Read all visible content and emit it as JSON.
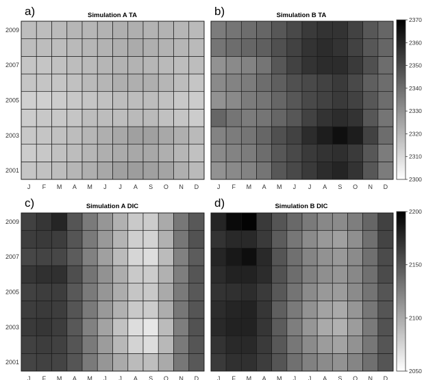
{
  "chart_data": [
    {
      "type": "heatmap",
      "panel_label": "a)",
      "title": "Simulation A TA",
      "x_categories": [
        "J",
        "F",
        "M",
        "A",
        "M",
        "J",
        "J",
        "A",
        "S",
        "O",
        "N",
        "D"
      ],
      "y_categories": [
        2001,
        2002,
        2003,
        2004,
        2005,
        2006,
        2007,
        2008,
        2009
      ],
      "y_tick_labels": [
        "2001",
        "2003",
        "2005",
        "2007",
        "2009"
      ],
      "colorbar": {
        "min": 2300,
        "max": 2370,
        "ticks": [
          "2300",
          "2310",
          "2320",
          "2330",
          "2340",
          "2350",
          "2360",
          "2370"
        ]
      },
      "values": [
        [
          2316,
          2317,
          2318,
          2320,
          2322,
          2324,
          2326,
          2327,
          2326,
          2325,
          2322,
          2319
        ],
        [
          2314,
          2315,
          2317,
          2318,
          2320,
          2322,
          2323,
          2324,
          2324,
          2322,
          2320,
          2317
        ],
        [
          2315,
          2316,
          2317,
          2318,
          2320,
          2322,
          2324,
          2326,
          2326,
          2324,
          2322,
          2319
        ],
        [
          2314,
          2315,
          2315,
          2316,
          2318,
          2318,
          2318,
          2319,
          2319,
          2317,
          2316,
          2314
        ],
        [
          2313,
          2313,
          2314,
          2315,
          2316,
          2317,
          2318,
          2318,
          2318,
          2317,
          2315,
          2314
        ],
        [
          2316,
          2316,
          2316,
          2317,
          2319,
          2320,
          2322,
          2322,
          2322,
          2320,
          2318,
          2316
        ],
        [
          2316,
          2316,
          2317,
          2318,
          2319,
          2320,
          2321,
          2321,
          2320,
          2319,
          2318,
          2318
        ],
        [
          2318,
          2318,
          2318,
          2319,
          2320,
          2321,
          2322,
          2323,
          2322,
          2321,
          2320,
          2319
        ],
        [
          2318,
          2318,
          2319,
          2320,
          2320,
          2321,
          2322,
          2322,
          2321,
          2321,
          2320,
          2319
        ]
      ]
    },
    {
      "type": "heatmap",
      "panel_label": "b)",
      "title": "Simulation B TA",
      "x_categories": [
        "J",
        "F",
        "M",
        "A",
        "M",
        "J",
        "J",
        "A",
        "S",
        "O",
        "N",
        "D"
      ],
      "y_categories": [
        2001,
        2002,
        2003,
        2004,
        2005,
        2006,
        2007,
        2008,
        2009
      ],
      "y_tick_labels": [
        "2001",
        "2003",
        "2005",
        "2007",
        "2009"
      ],
      "colorbar": {
        "min": 2300,
        "max": 2370,
        "ticks": [
          "2300",
          "2310",
          "2320",
          "2330",
          "2340",
          "2350",
          "2360",
          "2370"
        ]
      },
      "values": [
        [
          2330,
          2332,
          2334,
          2338,
          2346,
          2350,
          2354,
          2358,
          2360,
          2356,
          2346,
          2336
        ],
        [
          2332,
          2334,
          2336,
          2340,
          2346,
          2350,
          2354,
          2356,
          2357,
          2354,
          2346,
          2336
        ],
        [
          2334,
          2336,
          2338,
          2342,
          2348,
          2352,
          2358,
          2362,
          2366,
          2362,
          2352,
          2340
        ],
        [
          2342,
          2338,
          2336,
          2338,
          2342,
          2346,
          2352,
          2356,
          2358,
          2356,
          2346,
          2338
        ],
        [
          2330,
          2332,
          2336,
          2338,
          2342,
          2346,
          2350,
          2352,
          2354,
          2352,
          2346,
          2340
        ],
        [
          2332,
          2334,
          2336,
          2340,
          2344,
          2348,
          2350,
          2352,
          2354,
          2350,
          2344,
          2340
        ],
        [
          2330,
          2332,
          2334,
          2338,
          2346,
          2352,
          2356,
          2358,
          2358,
          2354,
          2348,
          2340
        ],
        [
          2338,
          2340,
          2342,
          2344,
          2348,
          2352,
          2356,
          2358,
          2356,
          2352,
          2346,
          2342
        ],
        [
          2336,
          2338,
          2340,
          2342,
          2346,
          2350,
          2354,
          2356,
          2356,
          2352,
          2346,
          2342
        ]
      ]
    },
    {
      "type": "heatmap",
      "panel_label": "c)",
      "title": "Simulation A DIC",
      "x_categories": [
        "J",
        "F",
        "M",
        "A",
        "M",
        "J",
        "J",
        "A",
        "S",
        "O",
        "N",
        "D"
      ],
      "y_categories": [
        2001,
        2002,
        2003,
        2004,
        2005,
        2006,
        2007,
        2008,
        2009
      ],
      "y_tick_labels": [
        "2001",
        "2003",
        "2005",
        "2007",
        "2009"
      ],
      "colorbar": {
        "min": 2050,
        "max": 2200,
        "ticks": [
          "2050",
          "2100",
          "2150",
          "2200"
        ]
      },
      "values": [
        [
          2160,
          2162,
          2160,
          2150,
          2128,
          2112,
          2100,
          2090,
          2088,
          2100,
          2130,
          2148
        ],
        [
          2162,
          2164,
          2162,
          2150,
          2128,
          2108,
          2092,
          2076,
          2070,
          2092,
          2128,
          2150
        ],
        [
          2166,
          2168,
          2164,
          2148,
          2124,
          2104,
          2086,
          2070,
          2064,
          2090,
          2126,
          2152
        ],
        [
          2164,
          2166,
          2164,
          2150,
          2128,
          2110,
          2096,
          2082,
          2080,
          2098,
          2130,
          2150
        ],
        [
          2162,
          2164,
          2164,
          2148,
          2128,
          2112,
          2098,
          2084,
          2082,
          2100,
          2128,
          2148
        ],
        [
          2168,
          2172,
          2172,
          2154,
          2132,
          2114,
          2098,
          2082,
          2080,
          2096,
          2126,
          2150
        ],
        [
          2158,
          2160,
          2158,
          2146,
          2124,
          2106,
          2090,
          2074,
          2070,
          2090,
          2124,
          2146
        ],
        [
          2164,
          2166,
          2164,
          2150,
          2128,
          2110,
          2094,
          2078,
          2076,
          2096,
          2130,
          2152
        ],
        [
          2162,
          2168,
          2178,
          2150,
          2128,
          2112,
          2096,
          2082,
          2080,
          2100,
          2130,
          2148
        ]
      ]
    },
    {
      "type": "heatmap",
      "panel_label": "d)",
      "title": "Simulation B DIC",
      "x_categories": [
        "J",
        "F",
        "M",
        "A",
        "M",
        "J",
        "J",
        "A",
        "S",
        "O",
        "N",
        "D"
      ],
      "y_categories": [
        2001,
        2002,
        2003,
        2004,
        2005,
        2006,
        2007,
        2008,
        2009
      ],
      "y_tick_labels": [
        "2001",
        "2003",
        "2005",
        "2007",
        "2009"
      ],
      "colorbar": {
        "min": 2050,
        "max": 2200,
        "ticks": [
          "2050",
          "2100",
          "2150",
          "2200"
        ]
      },
      "values": [
        [
          2166,
          2172,
          2172,
          2164,
          2150,
          2134,
          2124,
          2118,
          2114,
          2122,
          2134,
          2150
        ],
        [
          2170,
          2176,
          2176,
          2166,
          2148,
          2130,
          2118,
          2108,
          2104,
          2114,
          2130,
          2150
        ],
        [
          2176,
          2180,
          2180,
          2168,
          2146,
          2126,
          2112,
          2100,
          2096,
          2108,
          2128,
          2152
        ],
        [
          2174,
          2178,
          2180,
          2168,
          2144,
          2128,
          2114,
          2104,
          2100,
          2112,
          2130,
          2150
        ],
        [
          2170,
          2172,
          2174,
          2166,
          2148,
          2132,
          2118,
          2110,
          2108,
          2118,
          2132,
          2150
        ],
        [
          2174,
          2180,
          2180,
          2174,
          2152,
          2136,
          2124,
          2116,
          2112,
          2120,
          2134,
          2156
        ],
        [
          2178,
          2186,
          2192,
          2176,
          2150,
          2134,
          2122,
          2114,
          2110,
          2118,
          2134,
          2156
        ],
        [
          2170,
          2176,
          2176,
          2166,
          2146,
          2130,
          2118,
          2110,
          2106,
          2116,
          2134,
          2160
        ],
        [
          2178,
          2194,
          2198,
          2166,
          2150,
          2138,
          2128,
          2120,
          2118,
          2126,
          2140,
          2162
        ]
      ]
    }
  ]
}
